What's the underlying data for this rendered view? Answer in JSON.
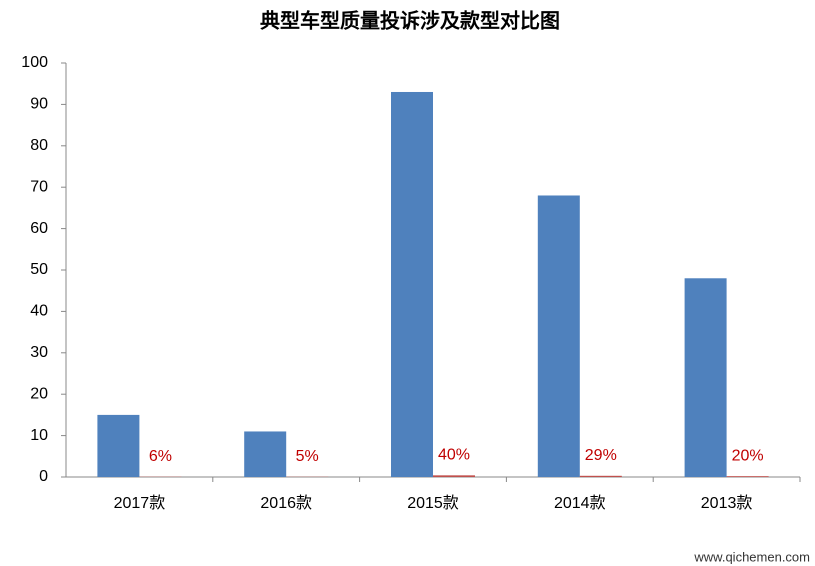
{
  "chart_data": {
    "type": "bar",
    "title": "典型车型质量投诉涉及款型对比图",
    "categories": [
      "2017款",
      "2016款",
      "2015款",
      "2014款",
      "2013款"
    ],
    "series": [
      {
        "color": "#4f81bd",
        "values": [
          15,
          11,
          93,
          68,
          48
        ]
      },
      {
        "color": "#c0504d",
        "values": [
          0.06,
          0.05,
          0.4,
          0.29,
          0.2
        ],
        "value_labels": [
          "6%",
          "5%",
          "40%",
          "29%",
          "20%"
        ]
      }
    ],
    "ylim": [
      0,
      100
    ],
    "yticks": [
      0,
      10,
      20,
      30,
      40,
      50,
      60,
      70,
      80,
      90,
      100
    ],
    "grid": false,
    "watermark": "www.qichemen.com"
  }
}
